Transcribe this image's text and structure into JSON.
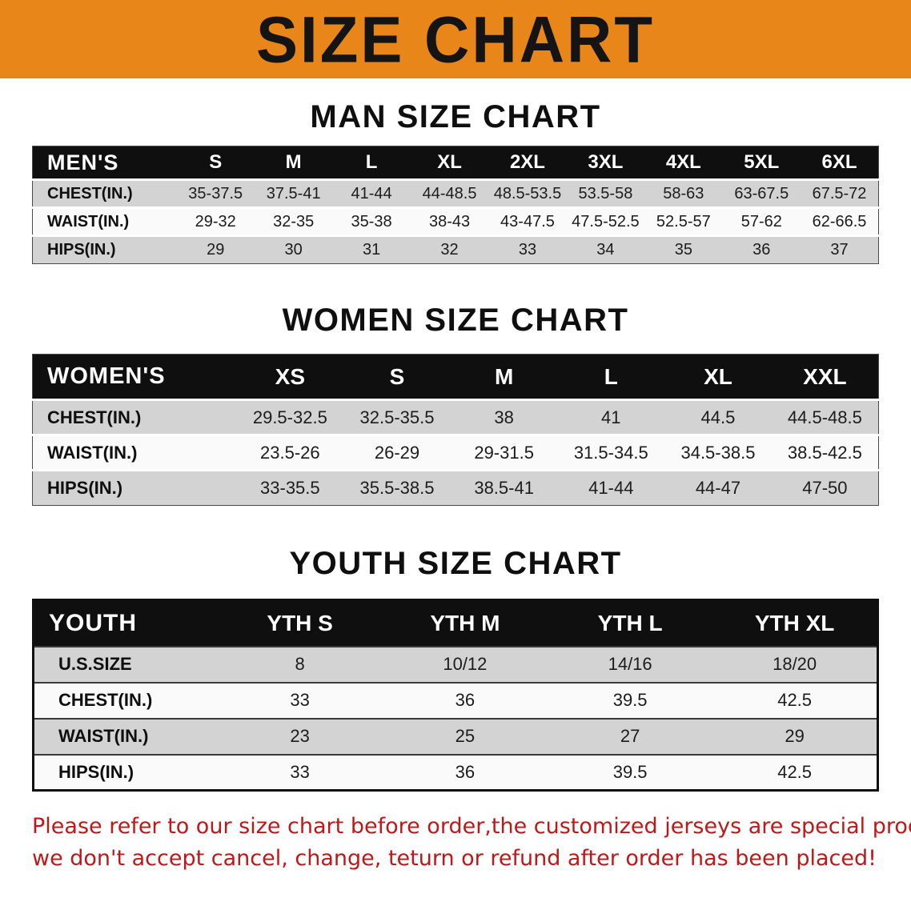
{
  "banner": {
    "title": "SIZE CHART",
    "bg_color": "#E9861A"
  },
  "chart_data": [
    {
      "type": "table",
      "title": "MAN SIZE CHART",
      "columns": [
        "MEN'S",
        "S",
        "M",
        "L",
        "XL",
        "2XL",
        "3XL",
        "4XL",
        "5XL",
        "6XL"
      ],
      "rows": [
        [
          "CHEST(IN.)",
          "35-37.5",
          "37.5-41",
          "41-44",
          "44-48.5",
          "48.5-53.5",
          "53.5-58",
          "58-63",
          "63-67.5",
          "67.5-72"
        ],
        [
          "WAIST(IN.)",
          "29-32",
          "32-35",
          "35-38",
          "38-43",
          "43-47.5",
          "47.5-52.5",
          "52.5-57",
          "57-62",
          "62-66.5"
        ],
        [
          "HIPS(IN.)",
          "29",
          "30",
          "31",
          "32",
          "33",
          "34",
          "35",
          "36",
          "37"
        ]
      ]
    },
    {
      "type": "table",
      "title": "WOMEN SIZE CHART",
      "columns": [
        "WOMEN'S",
        "XS",
        "S",
        "M",
        "L",
        "XL",
        "XXL"
      ],
      "rows": [
        [
          "CHEST(IN.)",
          "29.5-32.5",
          "32.5-35.5",
          "38",
          "41",
          "44.5",
          "44.5-48.5"
        ],
        [
          "WAIST(IN.)",
          "23.5-26",
          "26-29",
          "29-31.5",
          "31.5-34.5",
          "34.5-38.5",
          "38.5-42.5"
        ],
        [
          "HIPS(IN.)",
          "33-35.5",
          "35.5-38.5",
          "38.5-41",
          "41-44",
          "44-47",
          "47-50"
        ]
      ]
    },
    {
      "type": "table",
      "title": "YOUTH SIZE CHART",
      "columns": [
        "YOUTH",
        "YTH S",
        "YTH M",
        "YTH L",
        "YTH XL"
      ],
      "rows": [
        [
          "U.S.SIZE",
          "8",
          "10/12",
          "14/16",
          "18/20"
        ],
        [
          "CHEST(IN.)",
          "33",
          "36",
          "39.5",
          "42.5"
        ],
        [
          "WAIST(IN.)",
          "23",
          "25",
          "27",
          "29"
        ],
        [
          "HIPS(IN.)",
          "33",
          "36",
          "39.5",
          "42.5"
        ]
      ]
    }
  ],
  "disclaimer": {
    "line1": "Please refer to our size chart before order,the customized jerseys are special products,",
    "line2": "we don't accept cancel, change, teturn or refund after order has been placed!",
    "color": "#C01818"
  }
}
